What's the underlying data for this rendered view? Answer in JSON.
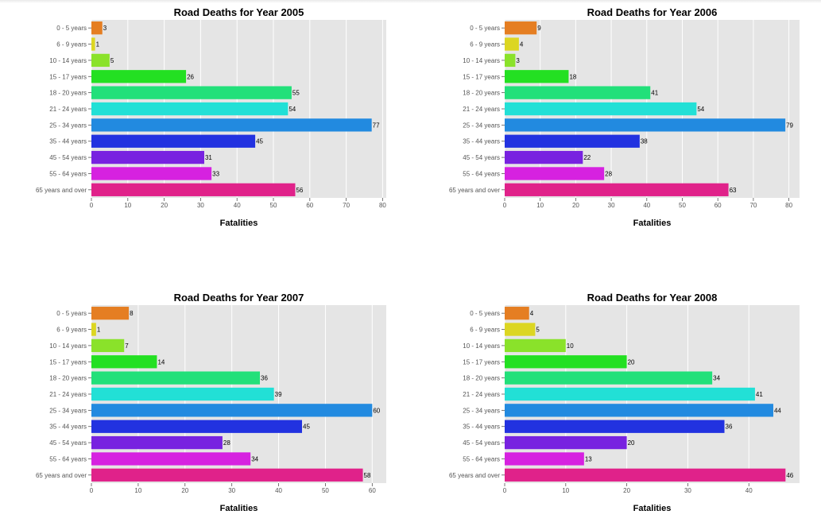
{
  "categories": [
    "0 - 5 years",
    "6 - 9 years",
    "10 - 14 years",
    "15 - 17 years",
    "18 - 20 years",
    "21 - 24 years",
    "25 - 34 years",
    "35 - 44 years",
    "45 - 54 years",
    "55 - 64 years",
    "65 years and over"
  ],
  "colors": [
    "#e57e22",
    "#dcd622",
    "#8ae22a",
    "#23e022",
    "#22e07a",
    "#22e0d6",
    "#228ae0",
    "#2232e0",
    "#7822e0",
    "#d622e0",
    "#e0228a"
  ],
  "chart_data": [
    {
      "type": "bar",
      "orientation": "horizontal",
      "title": "Road Deaths for Year 2005",
      "xlabel": "Fatalities",
      "ylabel": "",
      "categories": [
        "0 - 5 years",
        "6 - 9 years",
        "10 - 14 years",
        "15 - 17 years",
        "18 - 20 years",
        "21 - 24 years",
        "25 - 34 years",
        "35 - 44 years",
        "45 - 54 years",
        "55 - 64 years",
        "65 years and over"
      ],
      "values": [
        3,
        1,
        5,
        26,
        55,
        54,
        77,
        45,
        31,
        33,
        56
      ],
      "xlim": [
        0,
        81
      ],
      "xticks": [
        0,
        10,
        20,
        30,
        40,
        50,
        60,
        70,
        80
      ],
      "grid": true
    },
    {
      "type": "bar",
      "orientation": "horizontal",
      "title": "Road Deaths for Year 2006",
      "xlabel": "Fatalities",
      "ylabel": "",
      "categories": [
        "0 - 5 years",
        "6 - 9 years",
        "10 - 14 years",
        "15 - 17 years",
        "18 - 20 years",
        "21 - 24 years",
        "25 - 34 years",
        "35 - 44 years",
        "45 - 54 years",
        "55 - 64 years",
        "65 years and over"
      ],
      "values": [
        9,
        4,
        3,
        18,
        41,
        54,
        79,
        38,
        22,
        28,
        63
      ],
      "xlim": [
        0,
        83
      ],
      "xticks": [
        0,
        10,
        20,
        30,
        40,
        50,
        60,
        70,
        80
      ],
      "grid": true
    },
    {
      "type": "bar",
      "orientation": "horizontal",
      "title": "Road Deaths for Year 2007",
      "xlabel": "Fatalities",
      "ylabel": "",
      "categories": [
        "0 - 5 years",
        "6 - 9 years",
        "10 - 14 years",
        "15 - 17 years",
        "18 - 20 years",
        "21 - 24 years",
        "25 - 34 years",
        "35 - 44 years",
        "45 - 54 years",
        "55 - 64 years",
        "65 years and over"
      ],
      "values": [
        8,
        1,
        7,
        14,
        36,
        39,
        60,
        45,
        28,
        34,
        58
      ],
      "xlim": [
        0,
        63
      ],
      "xticks": [
        0,
        10,
        20,
        30,
        40,
        50,
        60
      ],
      "grid": true
    },
    {
      "type": "bar",
      "orientation": "horizontal",
      "title": "Road Deaths for Year 2008",
      "xlabel": "Fatalities",
      "ylabel": "",
      "categories": [
        "0 - 5 years",
        "6 - 9 years",
        "10 - 14 years",
        "15 - 17 years",
        "18 - 20 years",
        "21 - 24 years",
        "25 - 34 years",
        "35 - 44 years",
        "45 - 54 years",
        "55 - 64 years",
        "65 years and over"
      ],
      "values": [
        4,
        5,
        10,
        20,
        34,
        41,
        44,
        36,
        20,
        13,
        46
      ],
      "xlim": [
        0,
        48.3
      ],
      "xticks": [
        0,
        10,
        20,
        30,
        40
      ],
      "grid": true
    }
  ]
}
